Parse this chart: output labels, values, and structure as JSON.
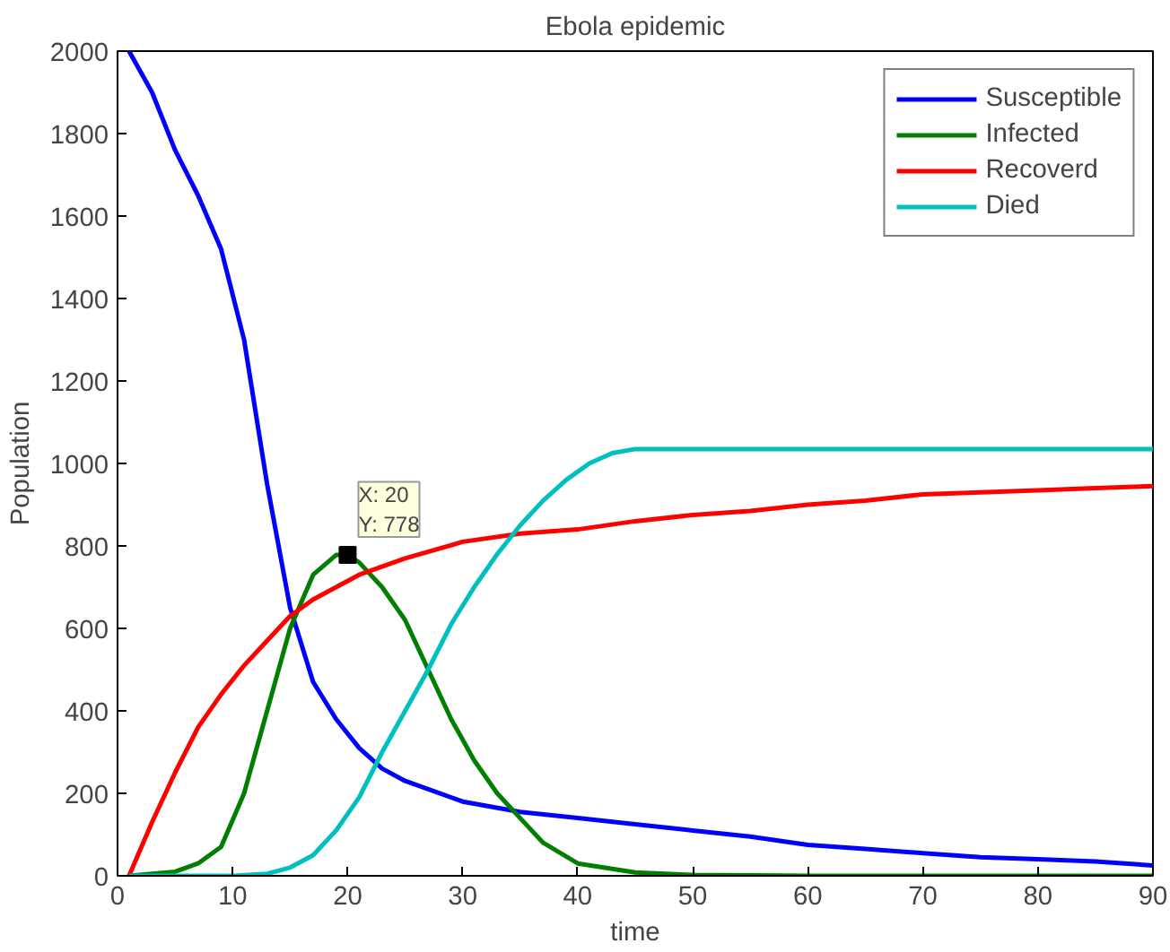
{
  "chart_data": {
    "type": "line",
    "title": "Ebola epidemic",
    "xlabel": "time",
    "ylabel": "Population",
    "xlim": [
      0,
      90
    ],
    "ylim": [
      0,
      2000
    ],
    "xticks": [
      0,
      10,
      20,
      30,
      40,
      50,
      60,
      70,
      80,
      90
    ],
    "yticks": [
      0,
      200,
      400,
      600,
      800,
      1000,
      1200,
      1400,
      1600,
      1800,
      2000
    ],
    "grid": false,
    "legend": "top right",
    "line_style": "solid",
    "marker": "none",
    "annotations": [
      {
        "text": "X: 20\nY: 778",
        "x": 20,
        "y": 778
      }
    ],
    "series": [
      {
        "name": "Susceptible",
        "color": "#0000ff",
        "x": [
          1,
          3,
          5,
          7,
          9,
          11,
          13,
          15,
          17,
          19,
          21,
          23,
          25,
          30,
          35,
          40,
          45,
          50,
          55,
          60,
          65,
          70,
          75,
          80,
          85,
          90
        ],
        "values": [
          2000,
          1900,
          1760,
          1650,
          1520,
          1300,
          950,
          650,
          470,
          380,
          310,
          260,
          230,
          180,
          155,
          140,
          125,
          110,
          95,
          75,
          65,
          55,
          45,
          40,
          35,
          25
        ]
      },
      {
        "name": "Infected",
        "color": "#007f00",
        "x": [
          1,
          5,
          7,
          9,
          11,
          13,
          15,
          17,
          19,
          20,
          21,
          23,
          25,
          27,
          29,
          31,
          33,
          35,
          37,
          40,
          45,
          50,
          60,
          90
        ],
        "values": [
          0,
          10,
          30,
          70,
          200,
          400,
          600,
          730,
          778,
          778,
          760,
          700,
          620,
          500,
          380,
          280,
          200,
          140,
          80,
          30,
          8,
          2,
          0,
          0
        ]
      },
      {
        "name": "Recoverd",
        "color": "#ff0000",
        "x": [
          1,
          3,
          5,
          7,
          9,
          11,
          13,
          15,
          17,
          19,
          21,
          25,
          30,
          35,
          40,
          45,
          50,
          55,
          60,
          65,
          70,
          75,
          80,
          85,
          90
        ],
        "values": [
          0,
          130,
          250,
          360,
          440,
          510,
          570,
          630,
          670,
          700,
          730,
          770,
          810,
          830,
          840,
          860,
          875,
          885,
          900,
          910,
          925,
          930,
          935,
          940,
          945
        ]
      },
      {
        "name": "Died",
        "color": "#00bfbf",
        "x": [
          1,
          10,
          13,
          15,
          17,
          19,
          21,
          23,
          25,
          27,
          29,
          31,
          33,
          35,
          37,
          39,
          41,
          43,
          45,
          50,
          90
        ],
        "values": [
          0,
          0,
          5,
          20,
          50,
          110,
          190,
          300,
          400,
          500,
          610,
          700,
          780,
          850,
          910,
          960,
          1000,
          1025,
          1035,
          1035,
          1035
        ]
      }
    ]
  }
}
